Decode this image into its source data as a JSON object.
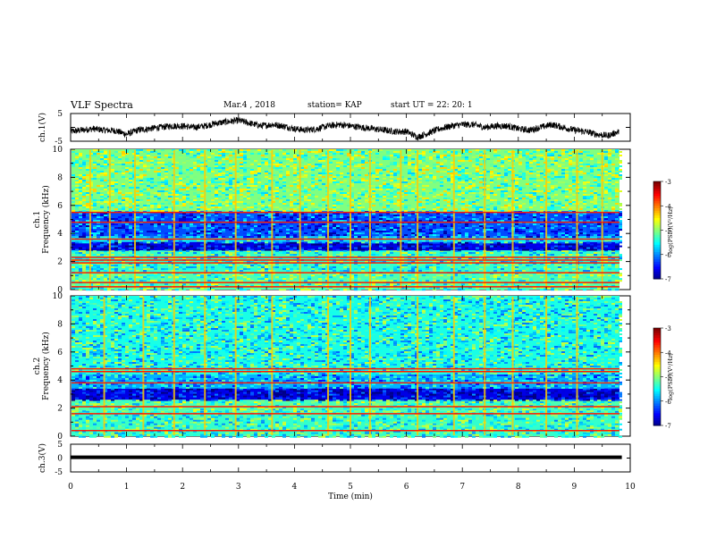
{
  "header": {
    "title": "VLF Spectra",
    "date": "Mar.4 , 2018",
    "station": "station= KAP",
    "start": "start UT =  22: 20: 1"
  },
  "chart_data": [
    {
      "type": "line",
      "title": "",
      "xlabel": "",
      "ylabel": "ch.1(V)",
      "xlim": [
        0,
        10
      ],
      "ylim": [
        -5,
        5
      ],
      "yticks": [
        "5",
        "-5"
      ],
      "series": [
        {
          "x": [
            0,
            0.2,
            0.4,
            0.6,
            0.8,
            1.0,
            1.2,
            1.4,
            1.6,
            1.8,
            2.0,
            2.2,
            2.4,
            2.6,
            2.8,
            3.0,
            3.2,
            3.4,
            3.6,
            3.8,
            4.0,
            4.2,
            4.4,
            4.6,
            4.8,
            5.0,
            5.2,
            5.4,
            5.6,
            5.8,
            6.0,
            6.2,
            6.4,
            6.6,
            6.8,
            7.0,
            7.2,
            7.4,
            7.6,
            7.8,
            8.0,
            8.2,
            8.4,
            8.6,
            8.8,
            9.0,
            9.2,
            9.4,
            9.6,
            9.8
          ],
          "values": [
            -1.5,
            -1,
            -0.5,
            -1,
            -1.2,
            -2.5,
            -1,
            -0.5,
            0,
            0.5,
            0.5,
            0,
            0.5,
            1.5,
            2,
            2.5,
            1.5,
            0.5,
            1,
            0.5,
            -0.5,
            -1,
            -0.5,
            0.5,
            1,
            0.5,
            0,
            -0.5,
            -1,
            -1.5,
            -1.5,
            -3.5,
            -2,
            -0.5,
            0.5,
            1,
            1,
            0,
            0.5,
            0.5,
            -0.5,
            -1,
            0,
            1,
            0,
            -1,
            -1.5,
            -2.5,
            -3,
            -1.5
          ]
        }
      ]
    },
    {
      "type": "heatmap",
      "title": "",
      "xlabel": "",
      "ylabel": "ch.1 Frequency (kHz)",
      "xlim": [
        0,
        10
      ],
      "ylim": [
        0,
        10
      ],
      "yticks": [
        "0",
        "2",
        "4",
        "6",
        "8",
        "10"
      ],
      "colorbar": {
        "label": "log(PSD)(V²/Hz)",
        "ticks": [
          "-3",
          "-4",
          "-5",
          "-6",
          "-7"
        ],
        "range": [
          -7,
          -3
        ]
      },
      "bands": [
        {
          "freq_khz": [
            0,
            1.2
          ],
          "level": -5.2
        },
        {
          "freq_khz": [
            1.2,
            2.8
          ],
          "level": -5.3
        },
        {
          "freq_khz": [
            2.8,
            3.4
          ],
          "level": -6.6
        },
        {
          "freq_khz": [
            3.4,
            3.8
          ],
          "level": -5.6
        },
        {
          "freq_khz": [
            3.8,
            5.6
          ],
          "level": -6.2
        },
        {
          "freq_khz": [
            5.6,
            10
          ],
          "level": -5.0
        }
      ],
      "lines_khz": [
        0.2,
        0.5,
        1.2,
        1.9,
        2.1,
        2.3,
        3.6,
        4.8,
        5.5
      ],
      "bursts_min": [
        0.35,
        0.7,
        1.15,
        1.85,
        2.4,
        2.95,
        3.6,
        4.1,
        4.6,
        5.0,
        5.35,
        5.9,
        6.2,
        6.85,
        7.4,
        7.9,
        8.5,
        9.05,
        9.5
      ]
    },
    {
      "type": "heatmap",
      "title": "",
      "xlabel": "",
      "ylabel": "ch.2 Frequency (kHz)",
      "xlim": [
        0,
        10
      ],
      "ylim": [
        0,
        10
      ],
      "yticks": [
        "0",
        "2",
        "4",
        "6",
        "8",
        "10"
      ],
      "colorbar": {
        "label": "log(PSD)(V²/Hz)",
        "ticks": [
          "-3",
          "-4",
          "-5",
          "-6",
          "-7"
        ],
        "range": [
          -7,
          -3
        ]
      },
      "bands": [
        {
          "freq_khz": [
            0,
            1.8
          ],
          "level": -5.3
        },
        {
          "freq_khz": [
            1.8,
            2.6
          ],
          "level": -5.2
        },
        {
          "freq_khz": [
            2.6,
            3.4
          ],
          "level": -6.6
        },
        {
          "freq_khz": [
            3.4,
            4.4
          ],
          "level": -5.8
        },
        {
          "freq_khz": [
            4.4,
            10
          ],
          "level": -5.4
        }
      ],
      "lines_khz": [
        0.4,
        1.6,
        2.1,
        3.8,
        4.6,
        4.8
      ],
      "bursts_min": [
        0.6,
        1.3,
        1.85,
        2.4,
        2.95,
        3.6,
        4.6,
        5.0,
        5.35,
        6.2,
        6.85,
        7.4,
        7.9,
        8.5,
        9.05
      ]
    },
    {
      "type": "line",
      "title": "",
      "xlabel": "Time  (min)",
      "ylabel": "ch.3(V)",
      "xlim": [
        0,
        10
      ],
      "ylim": [
        -5,
        5
      ],
      "yticks": [
        "5",
        "0",
        "-5"
      ],
      "xticks": [
        "0",
        "1",
        "2",
        "3",
        "4",
        "5",
        "6",
        "7",
        "8",
        "9",
        "10"
      ],
      "series": [
        {
          "x": [
            0,
            9.85
          ],
          "values": [
            0.3,
            0.3
          ]
        }
      ]
    }
  ]
}
